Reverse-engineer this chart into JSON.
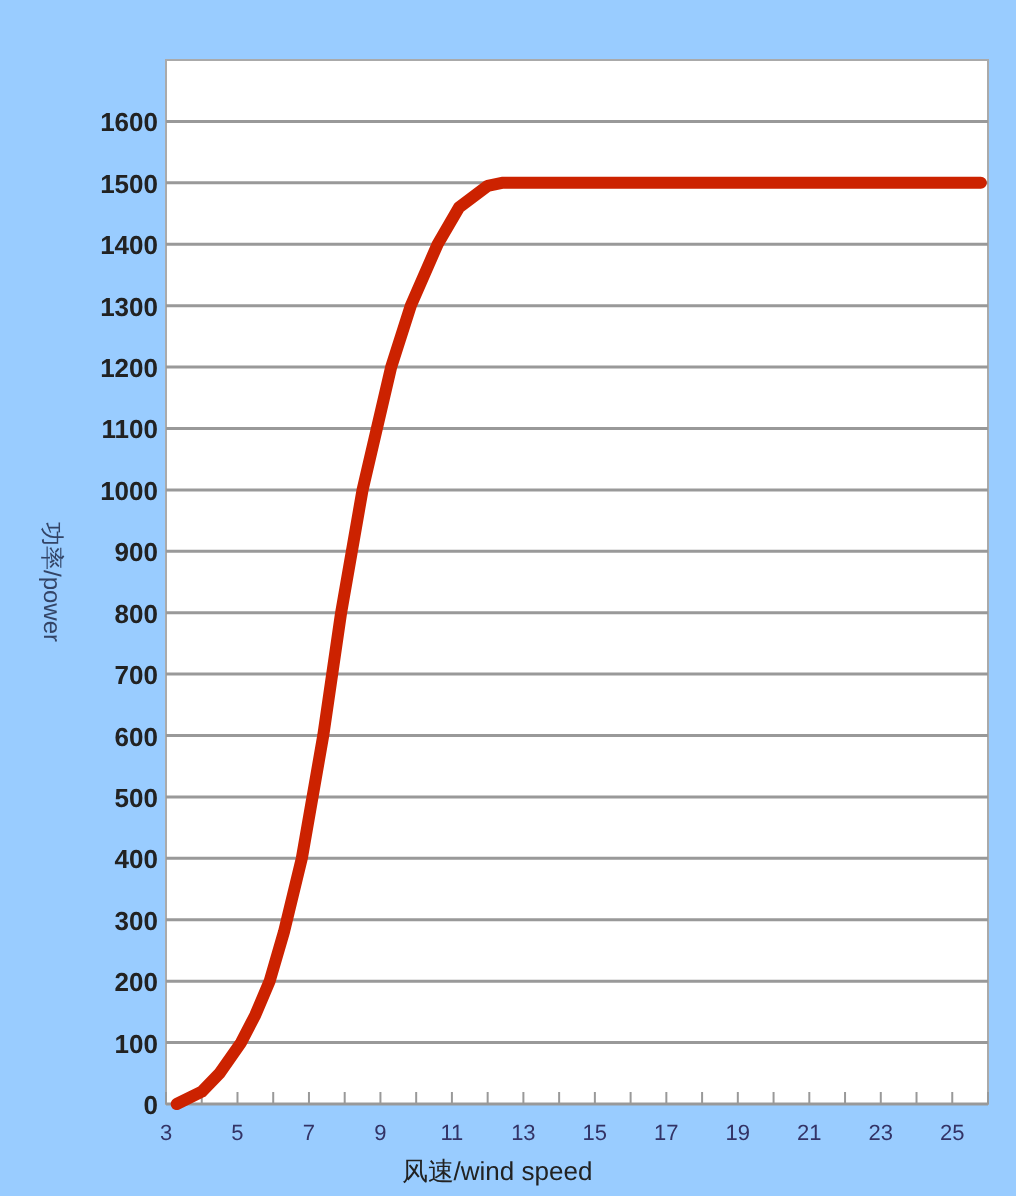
{
  "chart_data": {
    "type": "line",
    "xlabel": "风速/wind speed",
    "ylabel": "功率/power",
    "x": [
      3.3,
      4,
      4.5,
      5.1,
      5.5,
      5.9,
      6.3,
      6.8,
      7.4,
      7.9,
      8.5,
      9.3,
      9.85,
      10.6,
      11.2,
      12.0,
      12.4,
      25.8
    ],
    "series": [
      {
        "color": "#cc2200",
        "values": [
          0,
          20,
          50,
          100,
          145,
          200,
          280,
          400,
          600,
          800,
          1000,
          1200,
          1300,
          1400,
          1460,
          1495,
          1500,
          1500
        ]
      }
    ],
    "xlim": [
      3,
      26
    ],
    "ylim": [
      0,
      1700
    ],
    "xticks": [
      3,
      {
        "value": 4,
        "label": null
      },
      5,
      {
        "value": 6,
        "label": null
      },
      7,
      {
        "value": 8,
        "label": null
      },
      9,
      {
        "value": 10,
        "label": null
      },
      11,
      {
        "value": 12,
        "label": null
      },
      13,
      {
        "value": 14,
        "label": null
      },
      15,
      {
        "value": 16,
        "label": null
      },
      17,
      {
        "value": 18,
        "label": null
      },
      19,
      {
        "value": 20,
        "label": null
      },
      21,
      {
        "value": 22,
        "label": null
      },
      23,
      {
        "value": 24,
        "label": null
      },
      25,
      {
        "value": 26,
        "label": null
      }
    ],
    "yticks": [
      0,
      100,
      200,
      300,
      400,
      500,
      600,
      700,
      800,
      900,
      1000,
      1100,
      1200,
      1300,
      1400,
      1500,
      1600
    ],
    "grid": "y"
  }
}
